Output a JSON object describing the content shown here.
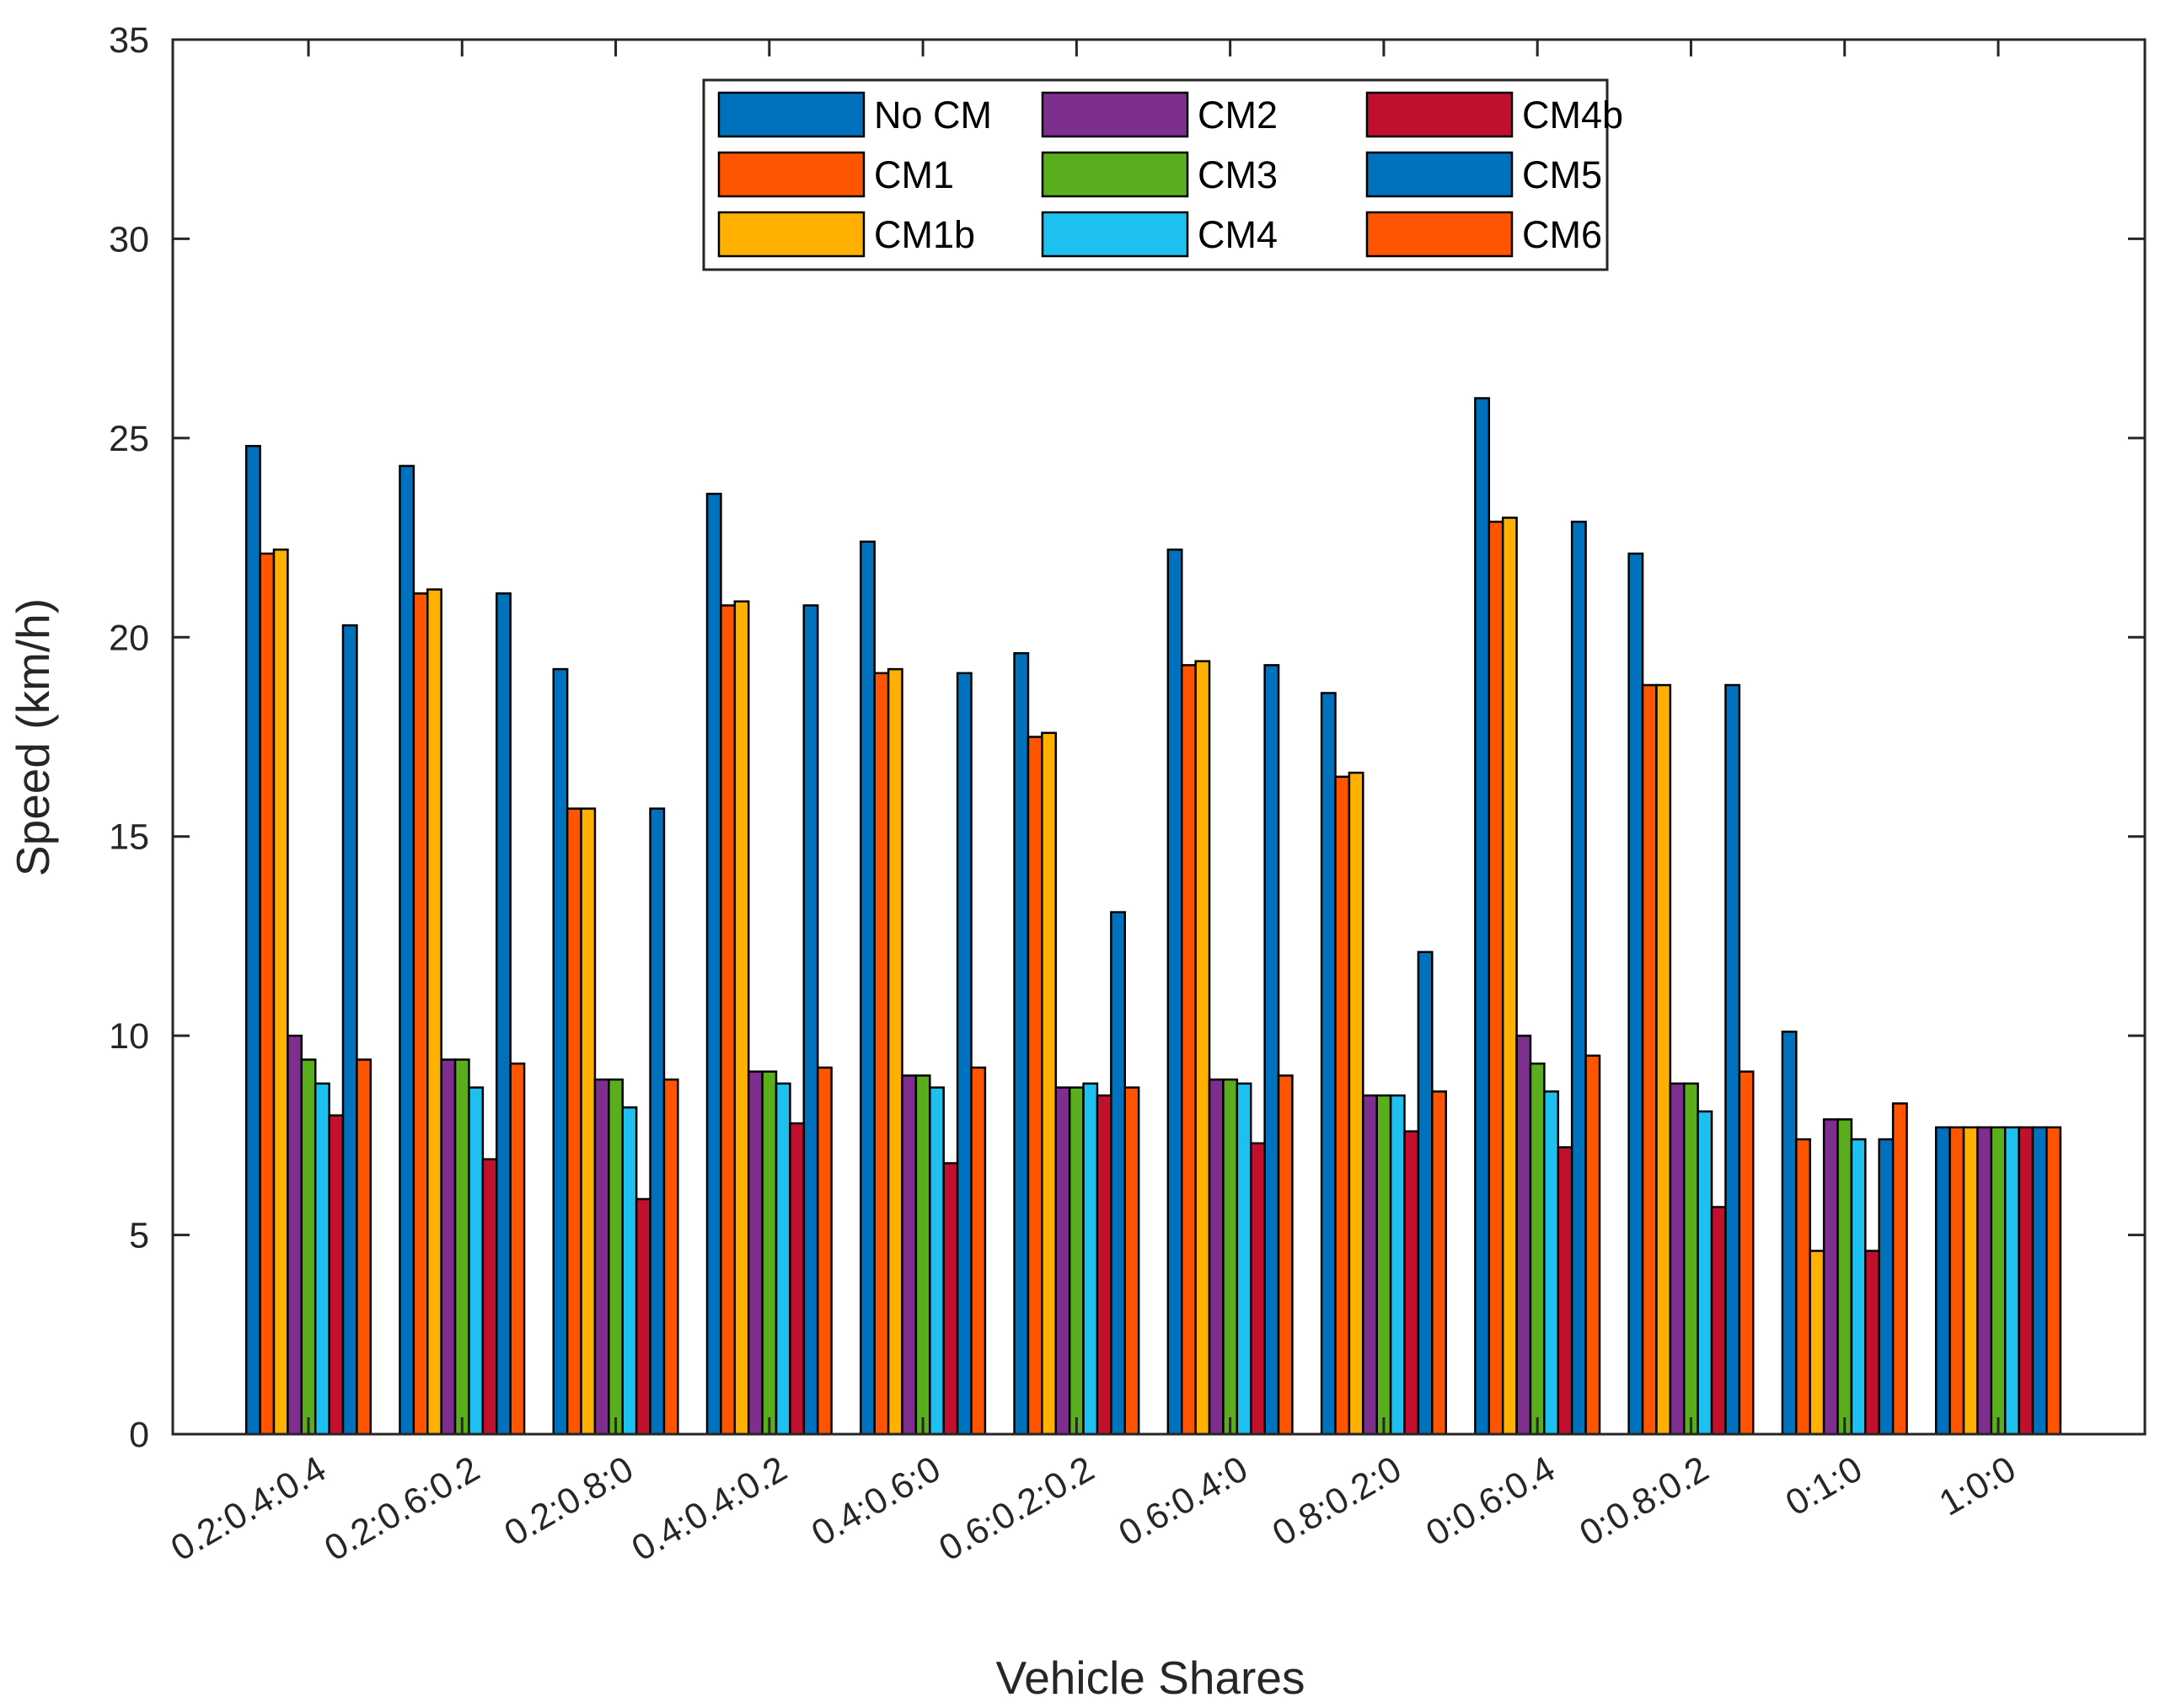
{
  "chart_data": {
    "type": "bar",
    "title": "",
    "xlabel": "Vehicle Shares",
    "ylabel": "Speed (km/h)",
    "ylim": [
      0,
      35
    ],
    "yticks": [
      "0",
      "5",
      "10",
      "15",
      "20",
      "25",
      "30",
      "35"
    ],
    "grid": false,
    "legend_position": "top-center",
    "categories": [
      "0.2:0.4:0.4",
      "0.2:0.6:0.2",
      "0.2:0.8:0",
      "0.4:0.4:0.2",
      "0.4:0.6:0",
      "0.6:0.2:0.2",
      "0.6:0.4:0",
      "0.8:0.2:0",
      "0:0.6:0.4",
      "0:0.8:0.2",
      "0:1:0",
      "1:0:0"
    ],
    "series": [
      {
        "name": "No CM",
        "color": "#0072BD",
        "values": [
          24.8,
          24.3,
          19.2,
          23.6,
          22.4,
          19.6,
          22.2,
          18.6,
          26.0,
          22.1,
          10.1,
          7.7
        ]
      },
      {
        "name": "CM1",
        "color": "#FF5500",
        "values": [
          22.1,
          21.1,
          15.7,
          20.8,
          19.1,
          17.5,
          19.3,
          16.5,
          22.9,
          18.8,
          7.4,
          7.7
        ]
      },
      {
        "name": "CM1b",
        "color": "#FFB000",
        "values": [
          22.2,
          21.2,
          15.7,
          20.9,
          19.2,
          17.6,
          19.4,
          16.6,
          23.0,
          18.8,
          4.6,
          7.7
        ]
      },
      {
        "name": "CM2",
        "color": "#7E2F8E",
        "values": [
          10.0,
          9.4,
          8.9,
          9.1,
          9.0,
          8.7,
          8.9,
          8.5,
          10.0,
          8.8,
          7.9,
          7.7
        ]
      },
      {
        "name": "CM3",
        "color": "#5AAE1E",
        "values": [
          9.4,
          9.4,
          8.9,
          9.1,
          9.0,
          8.7,
          8.9,
          8.5,
          9.3,
          8.8,
          7.9,
          7.7
        ]
      },
      {
        "name": "CM4",
        "color": "#1EC0F0",
        "values": [
          8.8,
          8.7,
          8.2,
          8.8,
          8.7,
          8.8,
          8.8,
          8.5,
          8.6,
          8.1,
          7.4,
          7.7
        ]
      },
      {
        "name": "CM4b",
        "color": "#C0102D",
        "values": [
          8.0,
          6.9,
          5.9,
          7.8,
          6.8,
          8.5,
          7.3,
          7.6,
          7.2,
          5.7,
          4.6,
          7.7
        ]
      },
      {
        "name": "CM5",
        "color": "#0072BD",
        "values": [
          20.3,
          21.1,
          15.7,
          20.8,
          19.1,
          13.1,
          19.3,
          12.1,
          22.9,
          18.8,
          7.4,
          7.7
        ]
      },
      {
        "name": "CM6",
        "color": "#FF5500",
        "values": [
          9.4,
          9.3,
          8.9,
          9.2,
          9.2,
          8.7,
          9.0,
          8.6,
          9.5,
          9.1,
          8.3,
          7.7
        ]
      }
    ]
  }
}
